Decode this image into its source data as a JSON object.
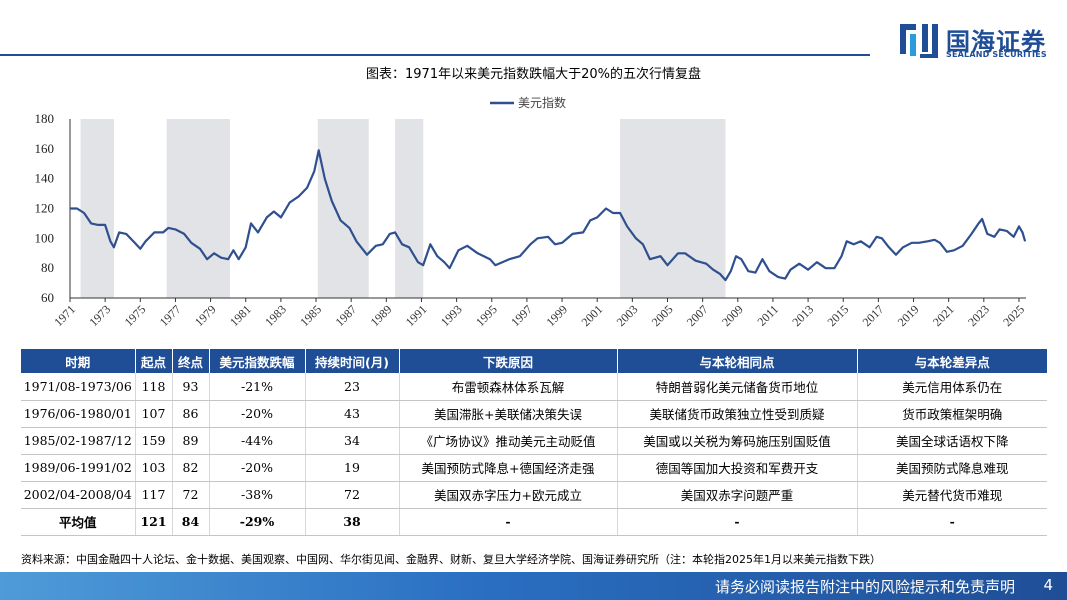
{
  "brand": {
    "name_cn": "国海证券",
    "name_en": "SEALAND SECURITIES"
  },
  "figure_title": "图表：1971年以来美元指数跌幅大于20%的五次行情复盘",
  "chart_data": {
    "type": "line",
    "title": "",
    "xlabel": "",
    "ylabel": "",
    "ylim": [
      60,
      180
    ],
    "xlim": [
      1971.0,
      2025.4
    ],
    "y_ticks": [
      60,
      80,
      100,
      120,
      140,
      160,
      180
    ],
    "x_ticks": [
      "1971",
      "1973",
      "1975",
      "1977",
      "1979",
      "1981",
      "1983",
      "1985",
      "1987",
      "1989",
      "1991",
      "1993",
      "1995",
      "1997",
      "1999",
      "2001",
      "2003",
      "2005",
      "2007",
      "2009",
      "2011",
      "2013",
      "2015",
      "2017",
      "2019",
      "2021",
      "2023",
      "2025"
    ],
    "grid": false,
    "legend": {
      "position": "top",
      "entries": [
        "美元指数"
      ]
    },
    "line_color": "#2f4f8f",
    "shade_color": "#e1e3e6",
    "shaded_periods": [
      {
        "start": 1971.6,
        "end": 1973.5
      },
      {
        "start": 1976.5,
        "end": 1980.1
      },
      {
        "start": 1985.1,
        "end": 1988.0
      },
      {
        "start": 1989.5,
        "end": 1991.1
      },
      {
        "start": 2002.3,
        "end": 2008.3
      }
    ],
    "series": [
      {
        "name": "美元指数",
        "points": [
          [
            1971.0,
            120
          ],
          [
            1971.4,
            120
          ],
          [
            1971.8,
            117
          ],
          [
            1972.2,
            110
          ],
          [
            1972.6,
            109
          ],
          [
            1973.0,
            109
          ],
          [
            1973.3,
            98
          ],
          [
            1973.5,
            94
          ],
          [
            1973.8,
            104
          ],
          [
            1974.2,
            103
          ],
          [
            1974.6,
            98
          ],
          [
            1975.0,
            93
          ],
          [
            1975.3,
            98
          ],
          [
            1975.8,
            104
          ],
          [
            1976.3,
            104
          ],
          [
            1976.6,
            107
          ],
          [
            1977.0,
            106
          ],
          [
            1977.5,
            103
          ],
          [
            1977.9,
            97
          ],
          [
            1978.4,
            93
          ],
          [
            1978.8,
            86
          ],
          [
            1979.2,
            90
          ],
          [
            1979.6,
            87
          ],
          [
            1980.0,
            86
          ],
          [
            1980.3,
            92
          ],
          [
            1980.6,
            86
          ],
          [
            1981.0,
            94
          ],
          [
            1981.3,
            110
          ],
          [
            1981.7,
            104
          ],
          [
            1982.2,
            114
          ],
          [
            1982.6,
            118
          ],
          [
            1983.0,
            114
          ],
          [
            1983.5,
            124
          ],
          [
            1984.0,
            128
          ],
          [
            1984.5,
            134
          ],
          [
            1984.9,
            145
          ],
          [
            1985.15,
            159
          ],
          [
            1985.5,
            140
          ],
          [
            1985.9,
            125
          ],
          [
            1986.4,
            112
          ],
          [
            1986.9,
            107
          ],
          [
            1987.3,
            98
          ],
          [
            1987.9,
            89
          ],
          [
            1988.4,
            95
          ],
          [
            1988.8,
            96
          ],
          [
            1989.2,
            103
          ],
          [
            1989.5,
            104
          ],
          [
            1989.9,
            96
          ],
          [
            1990.3,
            94
          ],
          [
            1990.8,
            84
          ],
          [
            1991.1,
            82
          ],
          [
            1991.5,
            96
          ],
          [
            1991.9,
            88
          ],
          [
            1992.3,
            84
          ],
          [
            1992.6,
            80
          ],
          [
            1993.1,
            92
          ],
          [
            1993.6,
            95
          ],
          [
            1994.2,
            90
          ],
          [
            1994.9,
            86
          ],
          [
            1995.2,
            82
          ],
          [
            1995.6,
            84
          ],
          [
            1996.0,
            86
          ],
          [
            1996.6,
            88
          ],
          [
            1997.2,
            96
          ],
          [
            1997.6,
            100
          ],
          [
            1998.2,
            101
          ],
          [
            1998.6,
            96
          ],
          [
            1999.0,
            97
          ],
          [
            1999.6,
            103
          ],
          [
            2000.2,
            104
          ],
          [
            2000.6,
            112
          ],
          [
            2001.0,
            114
          ],
          [
            2001.5,
            120
          ],
          [
            2001.9,
            117
          ],
          [
            2002.3,
            117
          ],
          [
            2002.7,
            108
          ],
          [
            2003.2,
            100
          ],
          [
            2003.6,
            96
          ],
          [
            2004.0,
            86
          ],
          [
            2004.6,
            88
          ],
          [
            2005.0,
            82
          ],
          [
            2005.6,
            90
          ],
          [
            2006.0,
            90
          ],
          [
            2006.6,
            85
          ],
          [
            2007.2,
            83
          ],
          [
            2007.6,
            79
          ],
          [
            2008.0,
            76
          ],
          [
            2008.3,
            72
          ],
          [
            2008.6,
            78
          ],
          [
            2008.9,
            88
          ],
          [
            2009.2,
            86
          ],
          [
            2009.6,
            78
          ],
          [
            2010.0,
            77
          ],
          [
            2010.4,
            86
          ],
          [
            2010.8,
            78
          ],
          [
            2011.3,
            74
          ],
          [
            2011.7,
            73
          ],
          [
            2012.0,
            79
          ],
          [
            2012.5,
            83
          ],
          [
            2013.0,
            79
          ],
          [
            2013.5,
            84
          ],
          [
            2014.0,
            80
          ],
          [
            2014.5,
            80
          ],
          [
            2014.9,
            88
          ],
          [
            2015.2,
            98
          ],
          [
            2015.6,
            96
          ],
          [
            2016.0,
            98
          ],
          [
            2016.5,
            94
          ],
          [
            2016.9,
            101
          ],
          [
            2017.2,
            100
          ],
          [
            2017.6,
            94
          ],
          [
            2018.0,
            89
          ],
          [
            2018.4,
            94
          ],
          [
            2018.9,
            97
          ],
          [
            2019.3,
            97
          ],
          [
            2019.8,
            98
          ],
          [
            2020.2,
            99
          ],
          [
            2020.5,
            97
          ],
          [
            2020.9,
            91
          ],
          [
            2021.3,
            92
          ],
          [
            2021.8,
            95
          ],
          [
            2022.3,
            103
          ],
          [
            2022.7,
            110
          ],
          [
            2022.9,
            113
          ],
          [
            2023.2,
            103
          ],
          [
            2023.6,
            101
          ],
          [
            2023.9,
            106
          ],
          [
            2024.3,
            105
          ],
          [
            2024.7,
            101
          ],
          [
            2025.0,
            108
          ],
          [
            2025.2,
            104
          ],
          [
            2025.35,
            98
          ]
        ]
      }
    ]
  },
  "table": {
    "headers": [
      "时期",
      "起点",
      "终点",
      "美元指数跌幅",
      "持续时间(月)",
      "下跌原因",
      "与本轮相同点",
      "与本轮差异点"
    ],
    "rows": [
      [
        "1971/08-1973/06",
        "118",
        "93",
        "-21%",
        "23",
        "布雷顿森林体系瓦解",
        "特朗普弱化美元储备货币地位",
        "美元信用体系仍在"
      ],
      [
        "1976/06-1980/01",
        "107",
        "86",
        "-20%",
        "43",
        "美国滞胀+美联储决策失误",
        "美联储货币政策独立性受到质疑",
        "货币政策框架明确"
      ],
      [
        "1985/02-1987/12",
        "159",
        "89",
        "-44%",
        "34",
        "《广场协议》推动美元主动贬值",
        "美国或以关税为筹码施压别国贬值",
        "美国全球话语权下降"
      ],
      [
        "1989/06-1991/02",
        "103",
        "82",
        "-20%",
        "19",
        "美国预防式降息+德国经济走强",
        "德国等国加大投资和军费开支",
        "美国预防式降息难现"
      ],
      [
        "2002/04-2008/04",
        "117",
        "72",
        "-38%",
        "72",
        "美国双赤字压力+欧元成立",
        "美国双赤字问题严重",
        "美元替代货币难现"
      ]
    ],
    "average_row": [
      "平均值",
      "121",
      "84",
      "-29%",
      "38",
      "-",
      "-",
      "-"
    ]
  },
  "source_note": "资料来源：中国金融四十人论坛、金十数据、美国观察、中国网、华尔街见闻、金融界、财新、复旦大学经济学院、国海证券研究所（注：本轮指2025年1月以来美元指数下跌）",
  "footer": {
    "disclaimer": "请务必阅读报告附注中的风险提示和免责声明",
    "page_number": "4"
  }
}
